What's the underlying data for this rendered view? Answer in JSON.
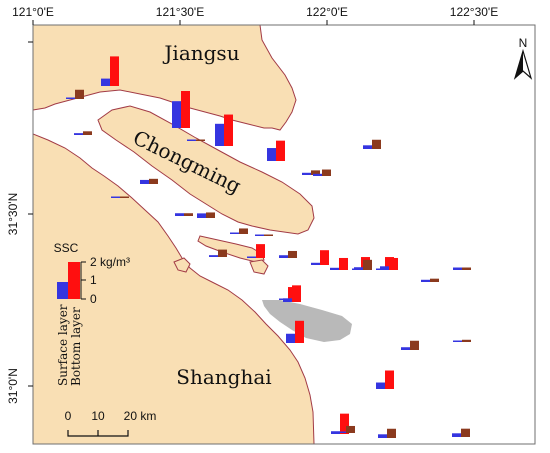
{
  "map": {
    "top_axis_labels": [
      "121°0'E",
      "121°30'E",
      "122°0'E",
      "122°30'E"
    ],
    "left_axis_labels": [
      "31°30'N",
      "31°0'N"
    ],
    "place_labels": {
      "jiangsu": "Jiangsu",
      "chongming": "Chongming",
      "shanghai": "Shanghai"
    },
    "north_label": "N",
    "legend": {
      "title": "SSC",
      "ticks": [
        "2 kg/m³",
        "1",
        "0"
      ],
      "surface_label": "Surface layer",
      "bottom_label": "Bottom layer"
    },
    "scale_bar": {
      "labels": [
        "0",
        "10",
        "20 km"
      ]
    },
    "colors": {
      "land": "#f9dfb4",
      "coast": "#a23b46",
      "frame": "#6f6f6f",
      "shoal": "#b9b9b9",
      "surface_bar": "#3535e0",
      "bottom_bar": "#ff0f0f",
      "bottom_bar_low": "#8b3a1e"
    },
    "ssc_unit": "kg/m³",
    "stations": [
      {
        "surface": 0.08,
        "bottom": 0.5
      },
      {
        "surface": 0.4,
        "bottom": 1.6
      },
      {
        "surface": 0.1,
        "bottom": 0.2
      },
      {
        "surface": 1.45,
        "bottom": 2.0
      },
      {
        "surface": 1.2,
        "bottom": 1.7
      },
      {
        "surface": 0.7,
        "bottom": 1.1
      },
      {
        "surface": 0.22,
        "bottom": 0.28
      },
      {
        "surface": 0.02,
        "bottom": 0.06
      },
      {
        "surface": 0.15,
        "bottom": 0.15
      },
      {
        "surface": 0.02,
        "bottom": 0.04
      },
      {
        "surface": 0.25,
        "bottom": 0.3
      },
      {
        "surface": 0.03,
        "bottom": 0.05
      },
      {
        "surface": 0.1,
        "bottom": 0.4
      },
      {
        "surface": 0.08,
        "bottom": 0.3
      },
      {
        "surface": 0.05,
        "bottom": 0.75
      },
      {
        "surface": 0.15,
        "bottom": 0.38
      },
      {
        "surface": 0.12,
        "bottom": 0.8
      },
      {
        "surface": 0.12,
        "bottom": 0.25
      },
      {
        "surface": 0.05,
        "bottom": 0.7
      },
      {
        "surface": 0.5,
        "bottom": 1.2
      },
      {
        "surface": 0.12,
        "bottom": 0.65
      },
      {
        "surface": 0.08,
        "bottom": 0.7
      },
      {
        "surface": 0.15,
        "bottom": 0.55
      },
      {
        "surface": 0.08,
        "bottom": 0.7
      },
      {
        "surface": 0.2,
        "bottom": 0.65
      },
      {
        "surface": 0.2,
        "bottom": 0.5
      },
      {
        "surface": 0.12,
        "bottom": 0.35
      },
      {
        "surface": 0.12,
        "bottom": 0.18
      },
      {
        "surface": 0.04,
        "bottom": 0.08
      },
      {
        "surface": 0.15,
        "bottom": 0.5
      },
      {
        "surface": 0.2,
        "bottom": 0.9
      },
      {
        "surface": 0.35,
        "bottom": 1.0
      },
      {
        "surface": 0.15,
        "bottom": 1.1
      },
      {
        "surface": 0.03,
        "bottom": 0.12
      },
      {
        "surface": 0.03,
        "bottom": 0.06
      },
      {
        "surface": 0.15,
        "bottom": 0.4
      },
      {
        "surface": 0.2,
        "bottom": 0.45
      },
      {
        "surface": 0.2,
        "bottom": 0.5
      },
      {
        "surface": 0.08,
        "bottom": 0.38
      }
    ]
  }
}
